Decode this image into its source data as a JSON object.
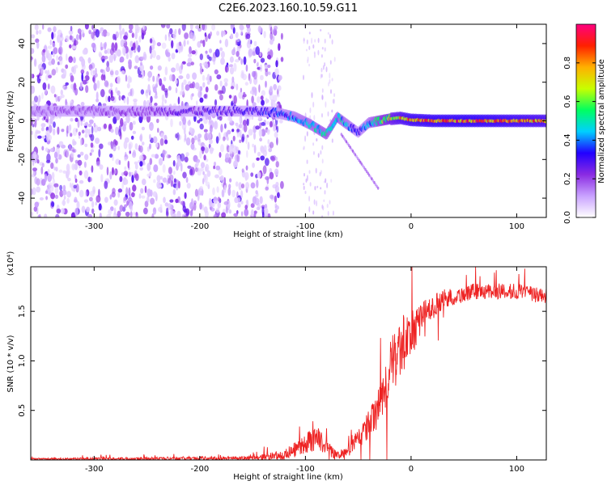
{
  "title": "C2E6.2023.160.10.59.G11",
  "chart_data": [
    {
      "type": "heatmap",
      "xlabel": "Height of straight line (km)",
      "ylabel": "Frequency (Hz)",
      "xlim": [
        -360,
        128
      ],
      "ylim": [
        -50,
        50
      ],
      "x_ticks": [
        -300,
        -200,
        -100,
        0,
        100
      ],
      "y_ticks": [
        -40,
        -20,
        0,
        20,
        40
      ],
      "grid": false,
      "colorbar": {
        "label": "Normalized spectral amplitude",
        "range": [
          0.0,
          1.0
        ],
        "ticks": [
          0.0,
          0.2,
          0.4,
          0.6,
          0.8
        ],
        "tick_labels": [
          "0.0",
          "0.2",
          "0.4",
          "0.6",
          "0.8"
        ],
        "colormap": [
          "#ffffff",
          "#c9a2ff",
          "#8a2be2",
          "#2200ff",
          "#00d0ff",
          "#00ff60",
          "#c8ff00",
          "#ffb000",
          "#ff2000",
          "#ff0080"
        ]
      },
      "ridge": {
        "x": [
          -355,
          -300,
          -250,
          -200,
          -150,
          -130,
          -110,
          -95,
          -80,
          -70,
          -60,
          -50,
          -40,
          -30,
          -20,
          -10,
          0,
          20,
          60,
          100,
          128
        ],
        "frequency": [
          5,
          5,
          5,
          5,
          5,
          4.5,
          2,
          -2,
          -7,
          2,
          -2,
          -6,
          -1,
          0,
          1,
          1.5,
          0.5,
          0,
          0,
          0,
          0
        ],
        "amplitude": [
          0.18,
          0.2,
          0.22,
          0.28,
          0.3,
          0.35,
          0.42,
          0.48,
          0.52,
          0.5,
          0.45,
          0.35,
          0.45,
          0.6,
          0.72,
          0.8,
          0.86,
          0.88,
          0.9,
          0.85,
          0.82
        ]
      },
      "noise_region_x": [
        -360,
        -130
      ]
    },
    {
      "type": "line",
      "xlabel": "Height of straight line (km)",
      "ylabel": "SNR (10 * v/v)",
      "y_multiplier": "(x10⁴)",
      "xlim": [
        -360,
        128
      ],
      "ylim": [
        0,
        1.95
      ],
      "x_ticks": [
        -300,
        -200,
        -100,
        0,
        100
      ],
      "y_ticks": [
        0.5,
        1.0,
        1.5
      ],
      "y_tick_labels": [
        "0.5",
        "1.0",
        "1.5"
      ],
      "grid": false,
      "series": [
        {
          "color": "#ee2222",
          "envelope": {
            "x": [
              -360,
              -150,
              -120,
              -110,
              -100,
              -95,
              -88,
              -80,
              -70,
              -60,
              -50,
              -40,
              -30,
              -20,
              -10,
              0,
              10,
              30,
              60,
              100,
              128
            ],
            "y": [
              0.01,
              0.02,
              0.05,
              0.1,
              0.16,
              0.2,
              0.22,
              0.12,
              0.05,
              0.08,
              0.22,
              0.35,
              0.55,
              0.9,
              1.15,
              1.25,
              1.45,
              1.62,
              1.7,
              1.7,
              1.65
            ]
          },
          "noise_scale": [
            0.008,
            0.02,
            0.05,
            0.08,
            0.1,
            0.12,
            0.12,
            0.08,
            0.04,
            0.05,
            0.1,
            0.15,
            0.2,
            0.3,
            0.3,
            0.25,
            0.15,
            0.1,
            0.08,
            0.08,
            0.08
          ]
        }
      ]
    }
  ]
}
